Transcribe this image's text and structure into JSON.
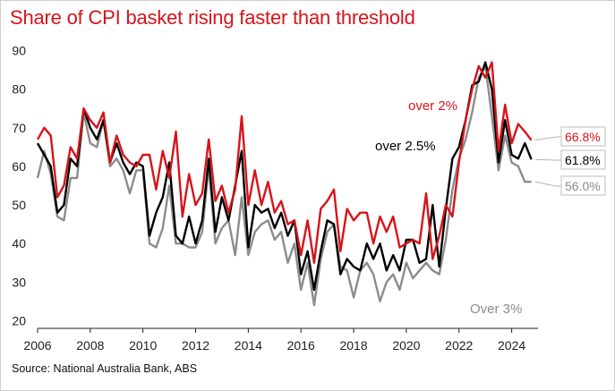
{
  "header": {
    "title": "Share of CPI basket rising faster than threshold"
  },
  "footer": {
    "source": "Source: National Australia Bank, ABS"
  },
  "colors": {
    "over_2": "#d7141a",
    "over_2_5": "#000000",
    "over_3": "#8c8c8c"
  },
  "chart_data": {
    "type": "line",
    "title": "Share of CPI basket rising faster than threshold",
    "xlabel": "",
    "ylabel": "",
    "xlim": [
      2006,
      2025
    ],
    "ylim": [
      18,
      92
    ],
    "x_ticks": [
      "2006",
      "2008",
      "2010",
      "2012",
      "2014",
      "2016",
      "2018",
      "2020",
      "2022",
      "2024"
    ],
    "y_ticks": [
      "20",
      "30",
      "40",
      "50",
      "60",
      "70",
      "80",
      "90"
    ],
    "grid": false,
    "legend": "inline labels",
    "x": [
      2006.0,
      2006.25,
      2006.5,
      2006.75,
      2007.0,
      2007.25,
      2007.5,
      2007.75,
      2008.0,
      2008.25,
      2008.5,
      2008.75,
      2009.0,
      2009.25,
      2009.5,
      2009.75,
      2010.0,
      2010.25,
      2010.5,
      2010.75,
      2011.0,
      2011.25,
      2011.5,
      2011.75,
      2012.0,
      2012.25,
      2012.5,
      2012.75,
      2013.0,
      2013.25,
      2013.5,
      2013.75,
      2014.0,
      2014.25,
      2014.5,
      2014.75,
      2015.0,
      2015.25,
      2015.5,
      2015.75,
      2016.0,
      2016.25,
      2016.5,
      2016.75,
      2017.0,
      2017.25,
      2017.5,
      2017.75,
      2018.0,
      2018.25,
      2018.5,
      2018.75,
      2019.0,
      2019.25,
      2019.5,
      2019.75,
      2020.0,
      2020.25,
      2020.5,
      2020.75,
      2021.0,
      2021.25,
      2021.5,
      2021.75,
      2022.0,
      2022.25,
      2022.5,
      2022.75,
      2023.0,
      2023.25,
      2023.5,
      2023.75,
      2024.0,
      2024.25,
      2024.5,
      2024.75
    ],
    "series": [
      {
        "name": "over 2%",
        "end_label": "66.8%",
        "values": [
          67,
          70,
          68,
          52,
          55,
          65,
          62,
          75,
          72,
          70,
          74,
          61,
          68,
          63,
          61,
          60,
          63,
          63,
          54,
          64,
          57,
          69,
          47,
          58,
          50,
          53,
          67,
          51,
          55,
          48,
          54,
          73,
          50,
          59,
          50,
          56,
          48,
          51,
          45,
          46,
          37,
          46,
          35,
          49,
          51,
          54,
          38,
          49,
          46,
          48,
          48,
          40,
          47,
          43,
          47,
          39,
          40,
          41,
          40,
          53,
          36,
          42,
          50,
          47,
          61,
          72,
          80,
          86,
          83,
          87,
          64,
          76,
          66,
          71,
          69,
          66.8
        ]
      },
      {
        "name": "over 2.5%",
        "end_label": "61.8%",
        "values": [
          66,
          63,
          60,
          48,
          50,
          62,
          60,
          75,
          70,
          67,
          72,
          61,
          66,
          61,
          58,
          61,
          60,
          42,
          48,
          52,
          61,
          42,
          40,
          47,
          40,
          46,
          62,
          43,
          52,
          46,
          55,
          64,
          39,
          50,
          48,
          49,
          44,
          48,
          42,
          46,
          32,
          38,
          28,
          38,
          46,
          45,
          32,
          36,
          34,
          33,
          40,
          36,
          40,
          33,
          37,
          33,
          41,
          41,
          35,
          36,
          50,
          34,
          49,
          62,
          65,
          72,
          81,
          82,
          87,
          80,
          61,
          72,
          63,
          62,
          66,
          61.8
        ]
      },
      {
        "name": "Over 3%",
        "end_label": "56.0%",
        "values": [
          57,
          64,
          58,
          47,
          46,
          57,
          57,
          74,
          66,
          65,
          72,
          60,
          62,
          59,
          53,
          59,
          59,
          40,
          39,
          44,
          55,
          40,
          40,
          39,
          39,
          43,
          60,
          40,
          44,
          46,
          37,
          52,
          37,
          43,
          45,
          46,
          41,
          43,
          35,
          40,
          28,
          35,
          24,
          36,
          43,
          45,
          34,
          33,
          26,
          33,
          35,
          32,
          25,
          30,
          32,
          28,
          35,
          31,
          33,
          35,
          33,
          32,
          41,
          54,
          62,
          67,
          74,
          83,
          86,
          73,
          59,
          68,
          61,
          60,
          56,
          56.0
        ]
      }
    ],
    "annotations": [
      {
        "text": "over 2%"
      },
      {
        "text": "over 2.5%"
      },
      {
        "text": "Over 3%"
      }
    ]
  }
}
